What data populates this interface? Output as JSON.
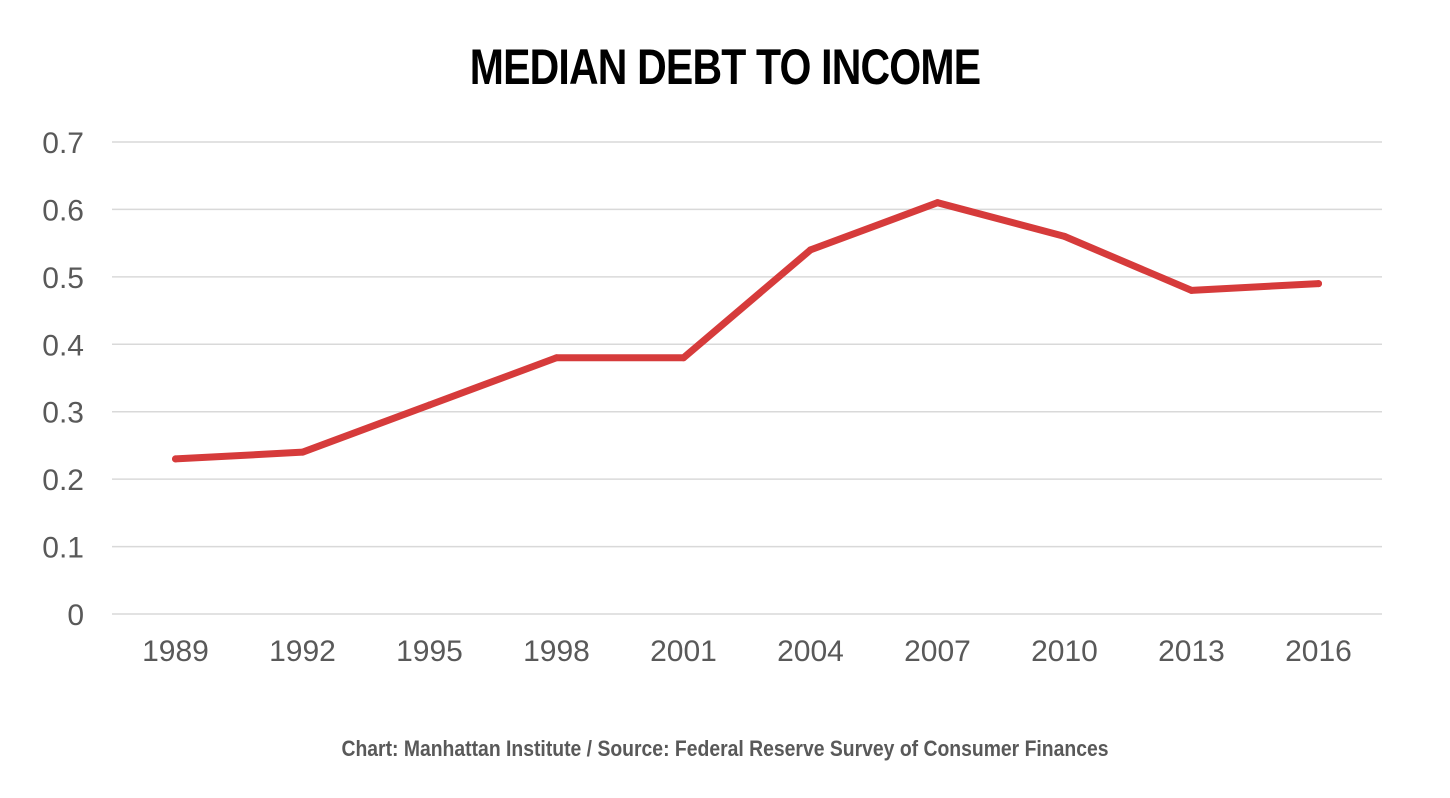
{
  "chart_data": {
    "type": "line",
    "title": "MEDIAN DEBT TO INCOME",
    "source": "Chart: Manhattan Institute  /  Source: Federal Reserve Survey of Consumer Finances",
    "categories": [
      "1989",
      "1992",
      "1995",
      "1998",
      "2001",
      "2004",
      "2007",
      "2010",
      "2013",
      "2016"
    ],
    "series": [
      {
        "values": [
          0.23,
          0.24,
          0.31,
          0.38,
          0.38,
          0.54,
          0.61,
          0.56,
          0.48,
          0.49
        ],
        "color": "#d63b3b"
      }
    ],
    "ylim": [
      0,
      0.7
    ],
    "yticks": [
      "0",
      "0.1",
      "0.2",
      "0.3",
      "0.4",
      "0.5",
      "0.6",
      "0.7"
    ],
    "grid": true,
    "legend": "none"
  }
}
